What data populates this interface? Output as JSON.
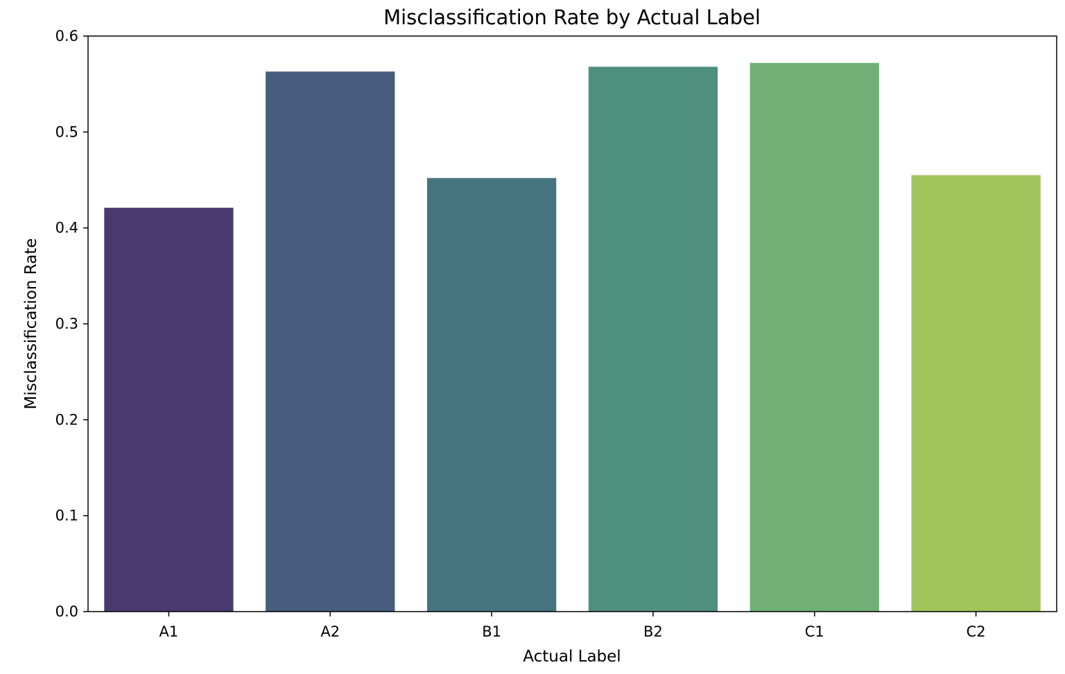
{
  "chart_data": {
    "type": "bar",
    "title": "Misclassification Rate by Actual Label",
    "xlabel": "Actual Label",
    "ylabel": "Misclassification Rate",
    "categories": [
      "A1",
      "A2",
      "B1",
      "B2",
      "C1",
      "C2"
    ],
    "values": [
      0.421,
      0.563,
      0.452,
      0.568,
      0.572,
      0.455
    ],
    "colors": [
      "#483a6e",
      "#485d7d",
      "#46747e",
      "#4e8f7d",
      "#70b077",
      "#a2c45c"
    ],
    "ylim": [
      0,
      0.6
    ],
    "yticks": [
      "0.0",
      "0.1",
      "0.2",
      "0.3",
      "0.4",
      "0.5",
      "0.6"
    ],
    "grid": false,
    "legend": "none"
  }
}
